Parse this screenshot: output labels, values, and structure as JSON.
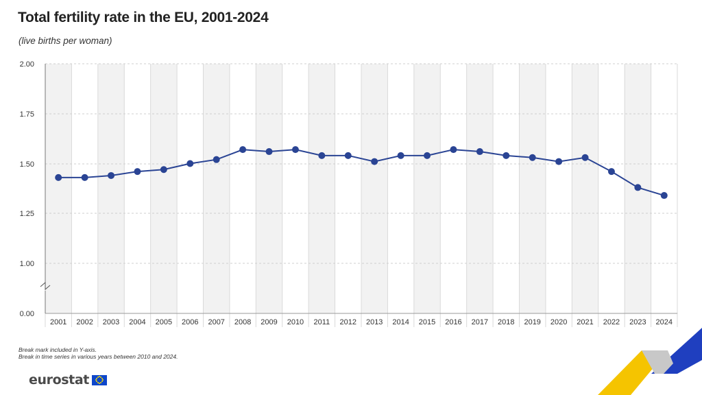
{
  "chart_data": {
    "type": "line",
    "title": "Total fertility rate in the EU, 2001-2024",
    "subtitle": "(live births per woman)",
    "categories": [
      "2001",
      "2002",
      "2003",
      "2004",
      "2005",
      "2006",
      "2007",
      "2008",
      "2009",
      "2010",
      "2011",
      "2012",
      "2013",
      "2014",
      "2015",
      "2016",
      "2017",
      "2018",
      "2019",
      "2020",
      "2021",
      "2022",
      "2023",
      "2024"
    ],
    "values": [
      1.43,
      1.43,
      1.44,
      1.46,
      1.47,
      1.5,
      1.52,
      1.57,
      1.56,
      1.57,
      1.54,
      1.54,
      1.51,
      1.54,
      1.54,
      1.57,
      1.56,
      1.54,
      1.53,
      1.51,
      1.53,
      1.46,
      1.38,
      1.34
    ],
    "yticks": [
      "0.00",
      "1.00",
      "1.25",
      "1.50",
      "1.75",
      "2.00"
    ],
    "ylim": [
      1.0,
      2.0
    ],
    "axis_break": true,
    "grid": true,
    "colors": {
      "line": "#2a4494",
      "marker": "#2a4494",
      "band_alt": "#f2f2f2",
      "grid": "#cfcfcf"
    }
  },
  "footnotes": [
    "Break mark included in Y-axis.",
    "Break in time series in various years between 2010 and 2024."
  ],
  "logo": {
    "text": "eurostat"
  }
}
